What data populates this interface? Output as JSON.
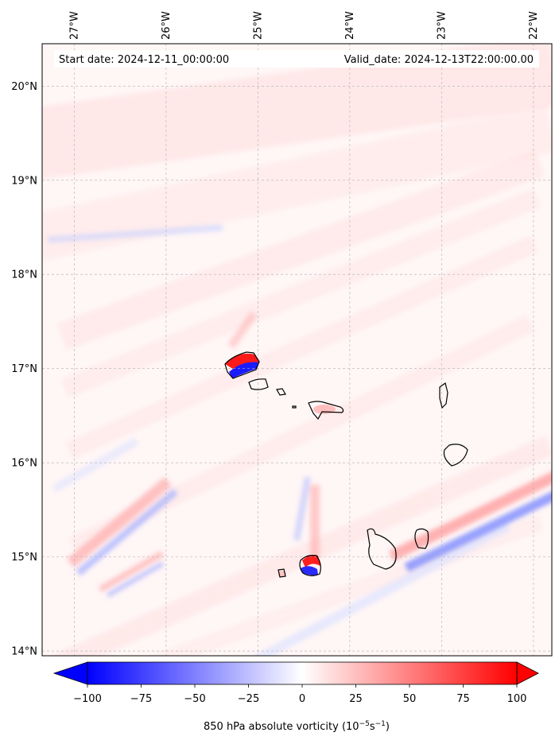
{
  "map": {
    "start_date": "Start date: 2024-12-11_00:00:00",
    "valid_date": "Valid_date: 2024-12-13T22:00:00.00",
    "lon_labels": [
      "27°W",
      "26°W",
      "25°W",
      "24°W",
      "23°W",
      "22°W"
    ],
    "lat_labels": [
      "20°N",
      "19°N",
      "18°N",
      "17°N",
      "16°N",
      "15°N",
      "14°N"
    ],
    "lon_values": [
      -27,
      -26,
      -25,
      -24,
      -23,
      -22
    ],
    "lat_values": [
      20,
      19,
      18,
      17,
      16,
      15,
      14
    ],
    "lon_range": [
      -27.35,
      -21.8
    ],
    "lat_range": [
      13.95,
      20.45
    ],
    "gridlines": true,
    "colormap": "bwr",
    "colors": {
      "negative": "#0000ff",
      "zero": "#ffffff",
      "positive": "#ff0000",
      "coastline": "#000000"
    }
  },
  "colorbar": {
    "label_main": "850 hPa absolute vorticity (10",
    "label_exp1": "−5",
    "label_mid": "s",
    "label_exp2": "−1",
    "label_end": ")",
    "ticks": [
      "−100",
      "−75",
      "−50",
      "−25",
      "0",
      "25",
      "50",
      "75",
      "100"
    ],
    "tick_values": [
      -100,
      -75,
      -50,
      -25,
      0,
      25,
      50,
      75,
      100
    ],
    "range": [
      -100,
      100
    ],
    "extend": "both"
  }
}
